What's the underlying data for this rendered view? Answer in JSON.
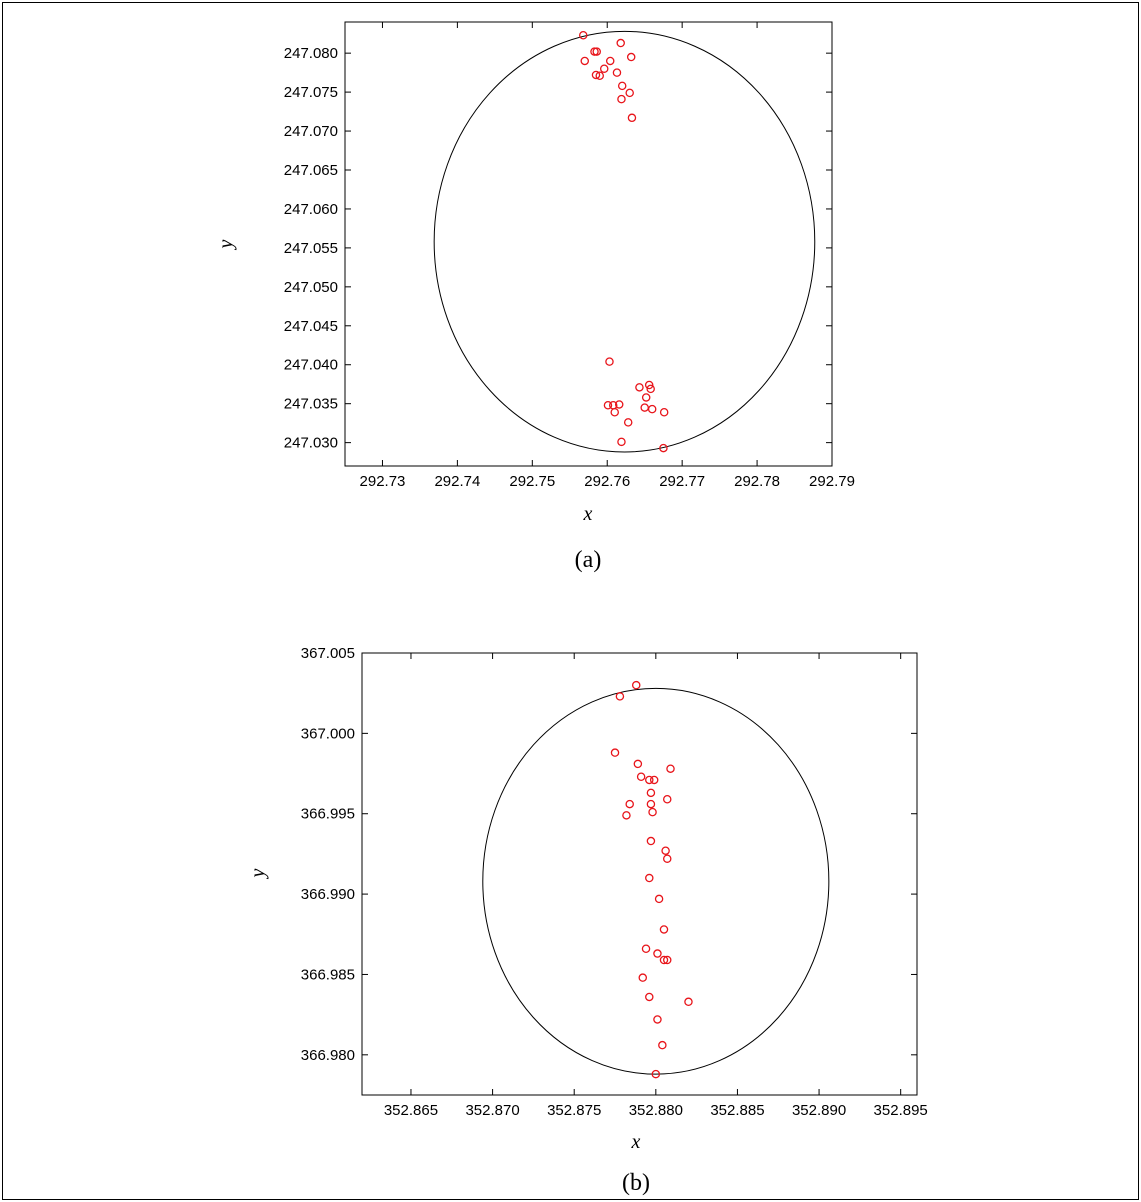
{
  "chart_data": [
    {
      "type": "scatter",
      "caption": "(a)",
      "xlabel": "x",
      "ylabel": "y",
      "xlim": [
        292.725,
        292.79
      ],
      "ylim": [
        247.027,
        247.084
      ],
      "x_ticks": [
        292.73,
        292.74,
        292.75,
        292.76,
        292.77,
        292.78,
        292.79
      ],
      "x_tick_labels": [
        "292.73",
        "292.74",
        "292.75",
        "292.76",
        "292.77",
        "292.78",
        "292.79"
      ],
      "y_ticks": [
        247.03,
        247.035,
        247.04,
        247.045,
        247.05,
        247.055,
        247.06,
        247.065,
        247.07,
        247.075,
        247.08
      ],
      "y_tick_labels": [
        "247.030",
        "247.035",
        "247.040",
        "247.045",
        "247.050",
        "247.055",
        "247.060",
        "247.065",
        "247.070",
        "247.075",
        "247.080"
      ],
      "grid": false,
      "marker_color": "#e8141a",
      "circle": {
        "center": [
          292.7623,
          247.0558
        ],
        "radius_x": 0.0254,
        "radius_y": 0.027
      },
      "points": [
        [
          292.7568,
          247.0823
        ],
        [
          292.7583,
          247.0802
        ],
        [
          292.7586,
          247.0802
        ],
        [
          292.757,
          247.079
        ],
        [
          292.7604,
          247.079
        ],
        [
          292.7596,
          247.078
        ],
        [
          292.7613,
          247.0775
        ],
        [
          292.7585,
          247.0772
        ],
        [
          292.759,
          247.0771
        ],
        [
          292.7618,
          247.0813
        ],
        [
          292.7632,
          247.0795
        ],
        [
          292.762,
          247.0758
        ],
        [
          292.763,
          247.0749
        ],
        [
          292.7619,
          247.0741
        ],
        [
          292.7633,
          247.0717
        ],
        [
          292.7603,
          247.0404
        ],
        [
          292.7643,
          247.0371
        ],
        [
          292.7656,
          247.0374
        ],
        [
          292.7658,
          247.0369
        ],
        [
          292.7652,
          247.0358
        ],
        [
          292.7616,
          247.0349
        ],
        [
          292.7601,
          247.0348
        ],
        [
          292.7608,
          247.0348
        ],
        [
          292.761,
          247.0339
        ],
        [
          292.765,
          247.0345
        ],
        [
          292.766,
          247.0343
        ],
        [
          292.7676,
          247.0339
        ],
        [
          292.7628,
          247.0326
        ],
        [
          292.7619,
          247.0301
        ],
        [
          292.7675,
          247.0293
        ]
      ]
    },
    {
      "type": "scatter",
      "caption": "(b)",
      "xlabel": "x",
      "ylabel": "y",
      "xlim": [
        352.862,
        352.896
      ],
      "ylim": [
        366.9775,
        367.005
      ],
      "x_ticks": [
        352.865,
        352.87,
        352.875,
        352.88,
        352.885,
        352.89,
        352.895
      ],
      "x_tick_labels": [
        "352.865",
        "352.870",
        "352.875",
        "352.880",
        "352.885",
        "352.890",
        "352.895"
      ],
      "y_ticks": [
        366.98,
        366.985,
        366.99,
        366.995,
        367.0,
        367.005
      ],
      "y_tick_labels": [
        "366.980",
        "366.985",
        "366.990",
        "366.995",
        "367.000",
        "367.005"
      ],
      "grid": false,
      "marker_color": "#e8141a",
      "circle": {
        "center": [
          352.88,
          366.9908
        ],
        "radius_x": 0.0106,
        "radius_y": 0.012
      },
      "points": [
        [
          352.8788,
          367.003
        ],
        [
          352.8778,
          367.0023
        ],
        [
          352.8775,
          366.9988
        ],
        [
          352.8789,
          366.9981
        ],
        [
          352.8809,
          366.9978
        ],
        [
          352.8791,
          366.9973
        ],
        [
          352.8796,
          366.9971
        ],
        [
          352.8799,
          366.9971
        ],
        [
          352.8797,
          366.9963
        ],
        [
          352.8807,
          366.9959
        ],
        [
          352.8797,
          366.9956
        ],
        [
          352.8784,
          366.9956
        ],
        [
          352.8782,
          366.9949
        ],
        [
          352.8798,
          366.9951
        ],
        [
          352.8797,
          366.9933
        ],
        [
          352.8806,
          366.9927
        ],
        [
          352.8807,
          366.9922
        ],
        [
          352.8796,
          366.991
        ],
        [
          352.8802,
          366.9897
        ],
        [
          352.8805,
          366.9878
        ],
        [
          352.8794,
          366.9866
        ],
        [
          352.8801,
          366.9863
        ],
        [
          352.8805,
          366.9859
        ],
        [
          352.8807,
          366.9859
        ],
        [
          352.8792,
          366.9848
        ],
        [
          352.882,
          366.9833
        ],
        [
          352.8796,
          366.9836
        ],
        [
          352.8801,
          366.9822
        ],
        [
          352.8804,
          366.9806
        ],
        [
          352.88,
          366.9788
        ]
      ]
    }
  ]
}
